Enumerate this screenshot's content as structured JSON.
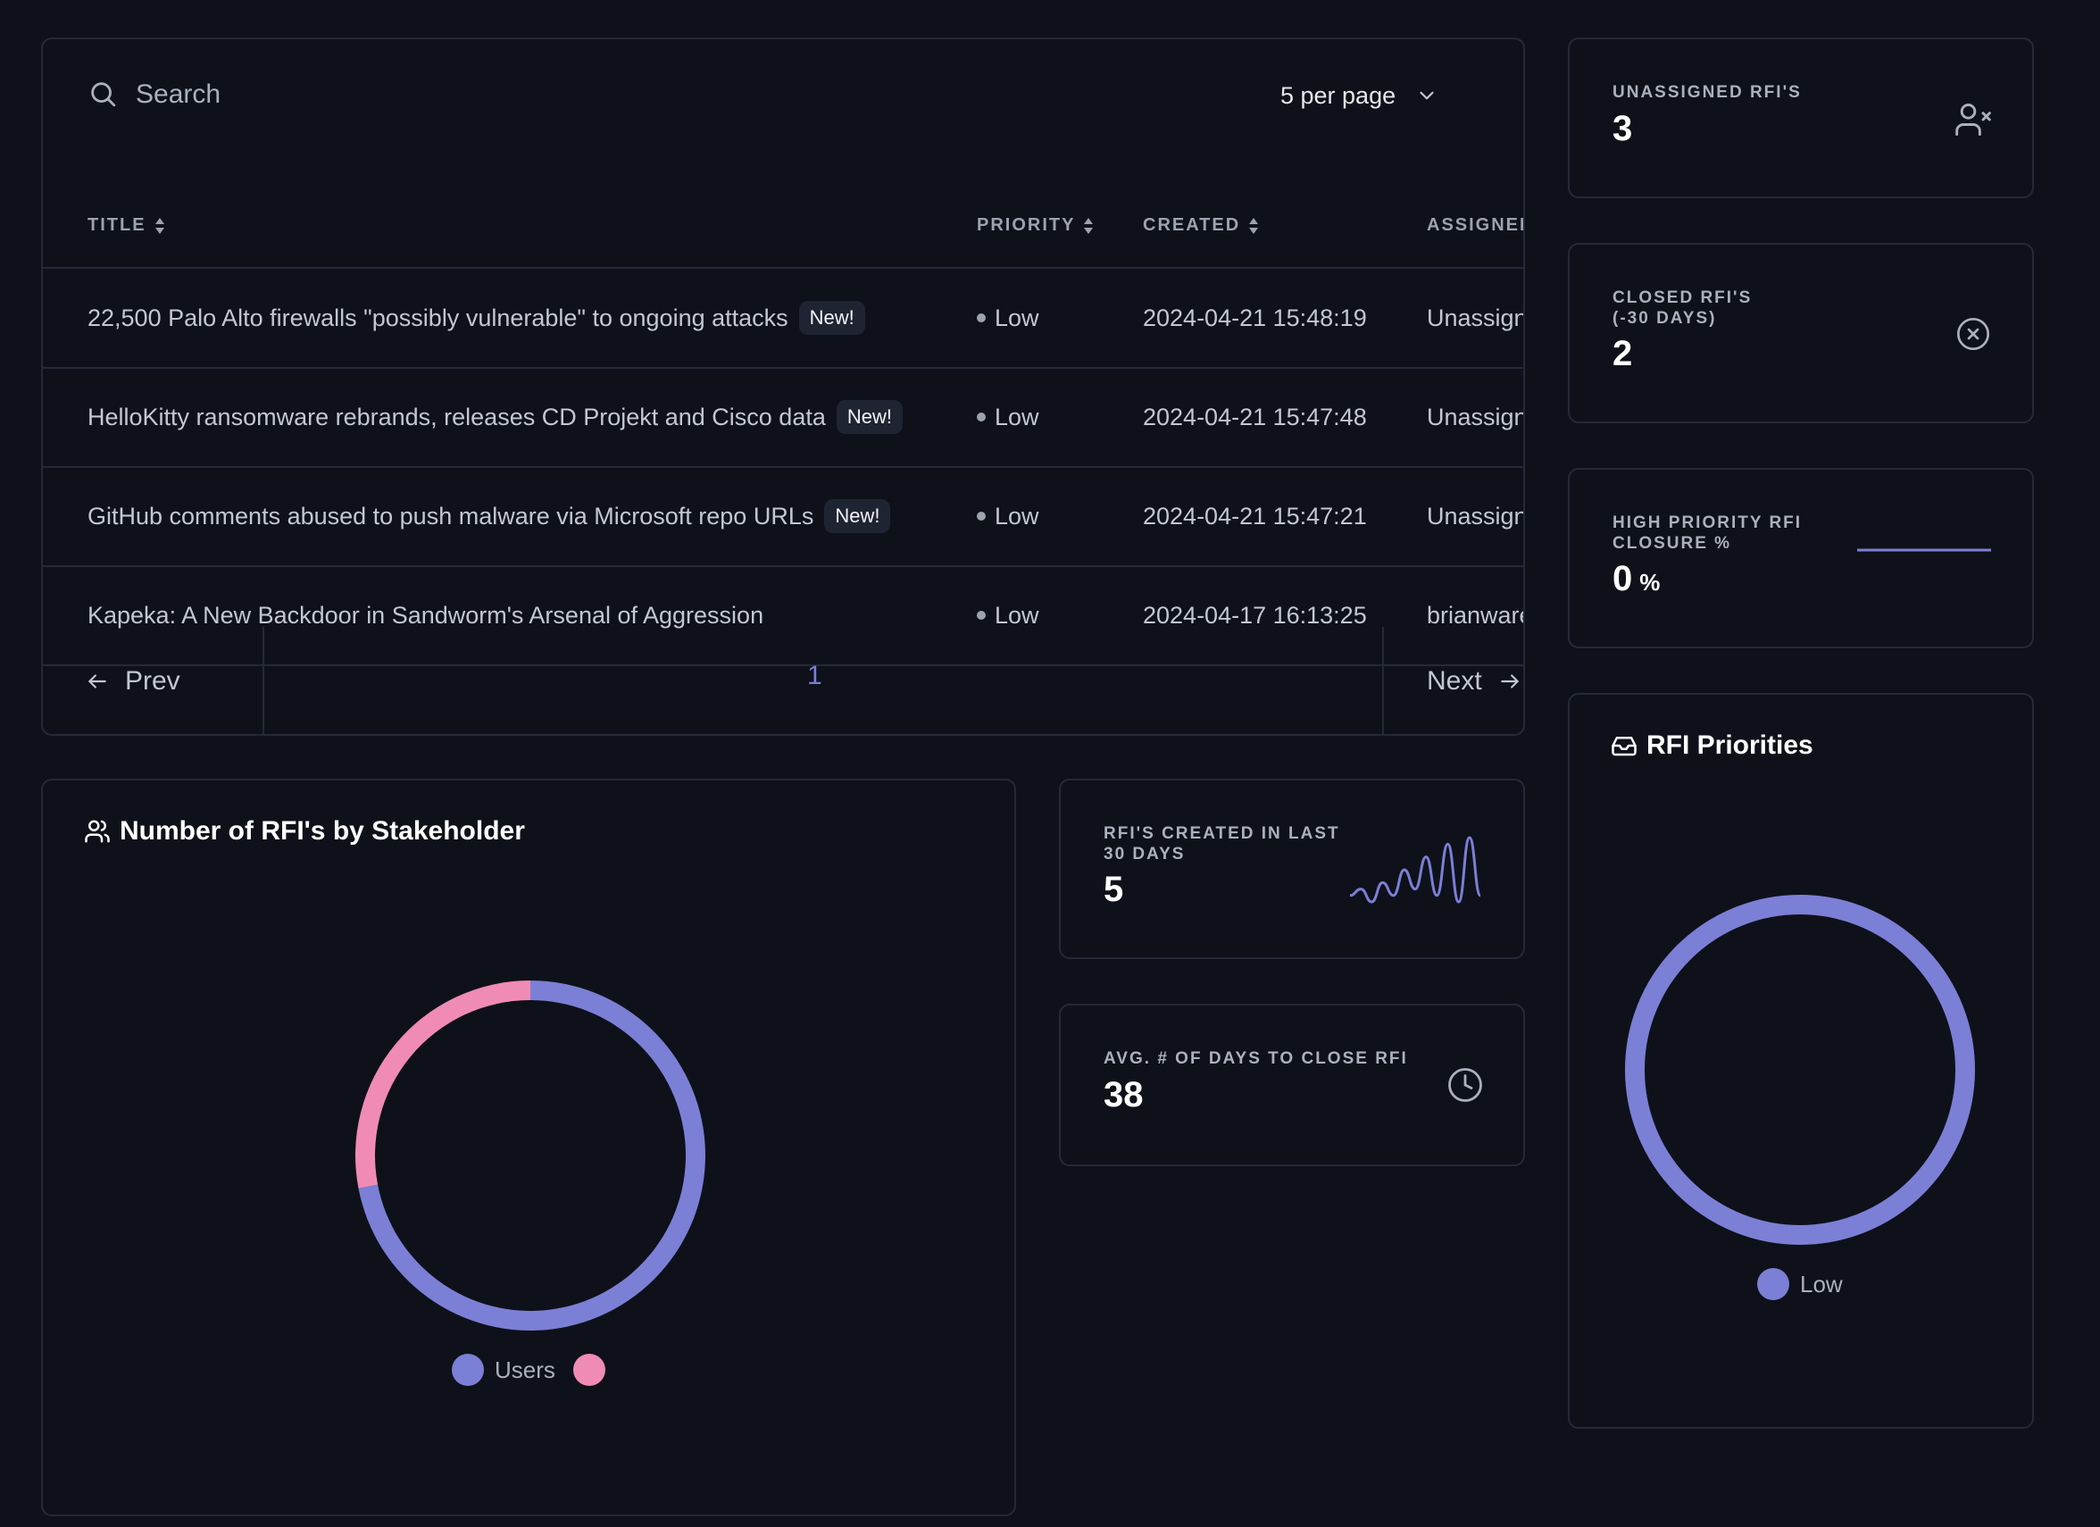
{
  "colors": {
    "accent": "#7b7fd6",
    "pink": "#f08bb5",
    "background": "#0f111a",
    "border": "#252938"
  },
  "table": {
    "search_placeholder": "Search",
    "per_page_label": "5 per page",
    "columns": [
      "TITLE",
      "PRIORITY",
      "CREATED",
      "ASSIGNED TO"
    ],
    "rows": [
      {
        "title": "22,500 Palo Alto firewalls \"possibly vulnerable\" to ongoing attacks",
        "badge": "New!",
        "priority": "Low",
        "created": "2024-04-21 15:48:19",
        "assigned": "Unassigned"
      },
      {
        "title": "HelloKitty ransomware rebrands, releases CD Projekt and Cisco data",
        "badge": "New!",
        "priority": "Low",
        "created": "2024-04-21 15:47:48",
        "assigned": "Unassigned"
      },
      {
        "title": "GitHub comments abused to push malware via Microsoft repo URLs",
        "badge": "New!",
        "priority": "Low",
        "created": "2024-04-21 15:47:21",
        "assigned": "Unassigned"
      },
      {
        "title": "Kapeka: A New Backdoor in Sandworm's Arsenal of Aggression",
        "badge": "",
        "priority": "Low",
        "created": "2024-04-17 16:13:25",
        "assigned": "brianwarehim"
      }
    ],
    "pagination": {
      "prev": "Prev",
      "next": "Next",
      "current_page": "1"
    }
  },
  "stats": {
    "unassigned": {
      "label": "UNASSIGNED RFI'S",
      "value": "3",
      "icon": "user-x-icon"
    },
    "closed": {
      "label_line1": "CLOSED RFI'S",
      "label_line2": "(-30 DAYS)",
      "value": "2",
      "icon": "x-circle-icon"
    },
    "high_priority": {
      "label_line1": "HIGH PRIORITY RFI",
      "label_line2": "CLOSURE %",
      "value": "0",
      "unit": "%"
    },
    "created_30": {
      "label_line1": "RFI'S CREATED IN LAST",
      "label_line2": "30 DAYS",
      "value": "5"
    },
    "avg_days": {
      "label": "AVG. # OF DAYS TO CLOSE RFI",
      "value": "38",
      "icon": "clock-icon"
    }
  },
  "stakeholder_chart": {
    "title": "Number of RFI's by Stakeholder",
    "icon": "users-icon",
    "legend": [
      "Users",
      ""
    ]
  },
  "priorities_chart": {
    "title": "RFI Priorities",
    "icon": "inbox-icon",
    "legend": [
      "Low"
    ]
  },
  "chart_data": [
    {
      "type": "pie",
      "title": "Number of RFI's by Stakeholder",
      "donut": true,
      "categories": [
        "Users",
        ""
      ],
      "values": [
        72,
        28
      ],
      "colors": [
        "#7b7fd6",
        "#f08bb5"
      ],
      "legend_position": "bottom"
    },
    {
      "type": "pie",
      "title": "RFI Priorities",
      "donut": true,
      "categories": [
        "Low"
      ],
      "values": [
        100
      ],
      "colors": [
        "#7b7fd6"
      ],
      "legend_position": "bottom"
    },
    {
      "type": "line",
      "title": "",
      "values": [
        1,
        2,
        0,
        3,
        1,
        5,
        2,
        7,
        1,
        9,
        0,
        10,
        1
      ],
      "colors": [
        "#7b7fd6"
      ]
    },
    {
      "type": "line",
      "title": "",
      "values": [
        0,
        0,
        0,
        0
      ],
      "colors": [
        "#7b7fd6"
      ]
    }
  ]
}
